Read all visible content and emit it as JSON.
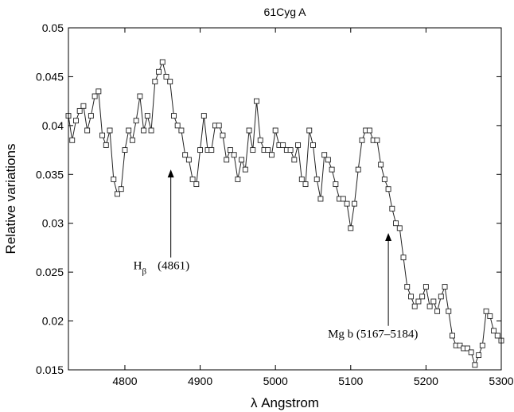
{
  "chart_data": {
    "type": "line",
    "title": "61Cyg A",
    "xlabel": "λ  Angstrom",
    "ylabel": "Relative variations",
    "xlim": [
      4725,
      5300
    ],
    "ylim": [
      0.015,
      0.05
    ],
    "xticks": [
      4800,
      4900,
      5000,
      5100,
      5200,
      5300
    ],
    "yticks": [
      0.015,
      0.02,
      0.025,
      0.03,
      0.035,
      0.04,
      0.045,
      0.05
    ],
    "ytick_labels": [
      "0.015",
      "0.02",
      "0.025",
      "0.03",
      "0.035",
      "0.04",
      "0.045",
      "0.05"
    ],
    "marker": "square",
    "grid": false,
    "series": [
      {
        "x": [
          4725,
          4730,
          4735,
          4740,
          4745,
          4750,
          4755,
          4760,
          4765,
          4770,
          4775,
          4780,
          4785,
          4790,
          4795,
          4800,
          4805,
          4810,
          4815,
          4820,
          4825,
          4830,
          4835,
          4840,
          4845,
          4850,
          4855,
          4860,
          4865,
          4870,
          4875,
          4880,
          4885,
          4890,
          4895,
          4900,
          4905,
          4910,
          4915,
          4920,
          4925,
          4930,
          4935,
          4940,
          4945,
          4950,
          4955,
          4960,
          4965,
          4970,
          4975,
          4980,
          4985,
          4990,
          4995,
          5000,
          5005,
          5010,
          5015,
          5020,
          5025,
          5030,
          5035,
          5040,
          5045,
          5050,
          5055,
          5060,
          5065,
          5070,
          5075,
          5080,
          5085,
          5090,
          5095,
          5100,
          5105,
          5110,
          5115,
          5120,
          5125,
          5130,
          5135,
          5140,
          5145,
          5150,
          5155,
          5160,
          5165,
          5170,
          5175,
          5180,
          5185,
          5190,
          5195,
          5200,
          5205,
          5210,
          5215,
          5220,
          5225,
          5230,
          5235,
          5240,
          5245,
          5250,
          5255,
          5260,
          5265,
          5270,
          5275,
          5280,
          5285,
          5290,
          5295,
          5300
        ],
        "y": [
          0.041,
          0.0385,
          0.0405,
          0.0415,
          0.042,
          0.0395,
          0.041,
          0.043,
          0.0435,
          0.039,
          0.038,
          0.0395,
          0.0345,
          0.033,
          0.0335,
          0.0375,
          0.0395,
          0.0385,
          0.0405,
          0.043,
          0.0395,
          0.041,
          0.0395,
          0.0445,
          0.0455,
          0.0465,
          0.045,
          0.0445,
          0.041,
          0.04,
          0.0395,
          0.037,
          0.0365,
          0.0345,
          0.034,
          0.0375,
          0.041,
          0.0375,
          0.0375,
          0.04,
          0.04,
          0.039,
          0.0365,
          0.0375,
          0.037,
          0.0345,
          0.0365,
          0.0355,
          0.0395,
          0.0375,
          0.0425,
          0.0385,
          0.0375,
          0.0375,
          0.037,
          0.0395,
          0.038,
          0.038,
          0.0375,
          0.0375,
          0.0365,
          0.038,
          0.0345,
          0.034,
          0.0395,
          0.038,
          0.0345,
          0.0325,
          0.037,
          0.0365,
          0.0355,
          0.034,
          0.0325,
          0.0325,
          0.032,
          0.0295,
          0.032,
          0.0355,
          0.0385,
          0.0395,
          0.0395,
          0.0385,
          0.0385,
          0.036,
          0.0345,
          0.0335,
          0.0315,
          0.03,
          0.0295,
          0.0265,
          0.0235,
          0.0225,
          0.0215,
          0.022,
          0.0225,
          0.0235,
          0.0215,
          0.022,
          0.021,
          0.0225,
          0.0235,
          0.021,
          0.0185,
          0.0175,
          0.0175,
          0.0172,
          0.0172,
          0.0168,
          0.0155,
          0.0165,
          0.0175,
          0.021,
          0.0205,
          0.019,
          0.0185,
          0.018
        ]
      }
    ],
    "annotations": [
      {
        "text": "(4861)",
        "symbol": "H",
        "subscript": "β",
        "arrow_x": 4861,
        "arrow_y_from": 0.0265,
        "arrow_y_to": 0.0355
      },
      {
        "text": "Mg b (5167–5184)",
        "arrow_x": 5150,
        "arrow_y_from": 0.0195,
        "arrow_y_to": 0.029
      }
    ]
  }
}
